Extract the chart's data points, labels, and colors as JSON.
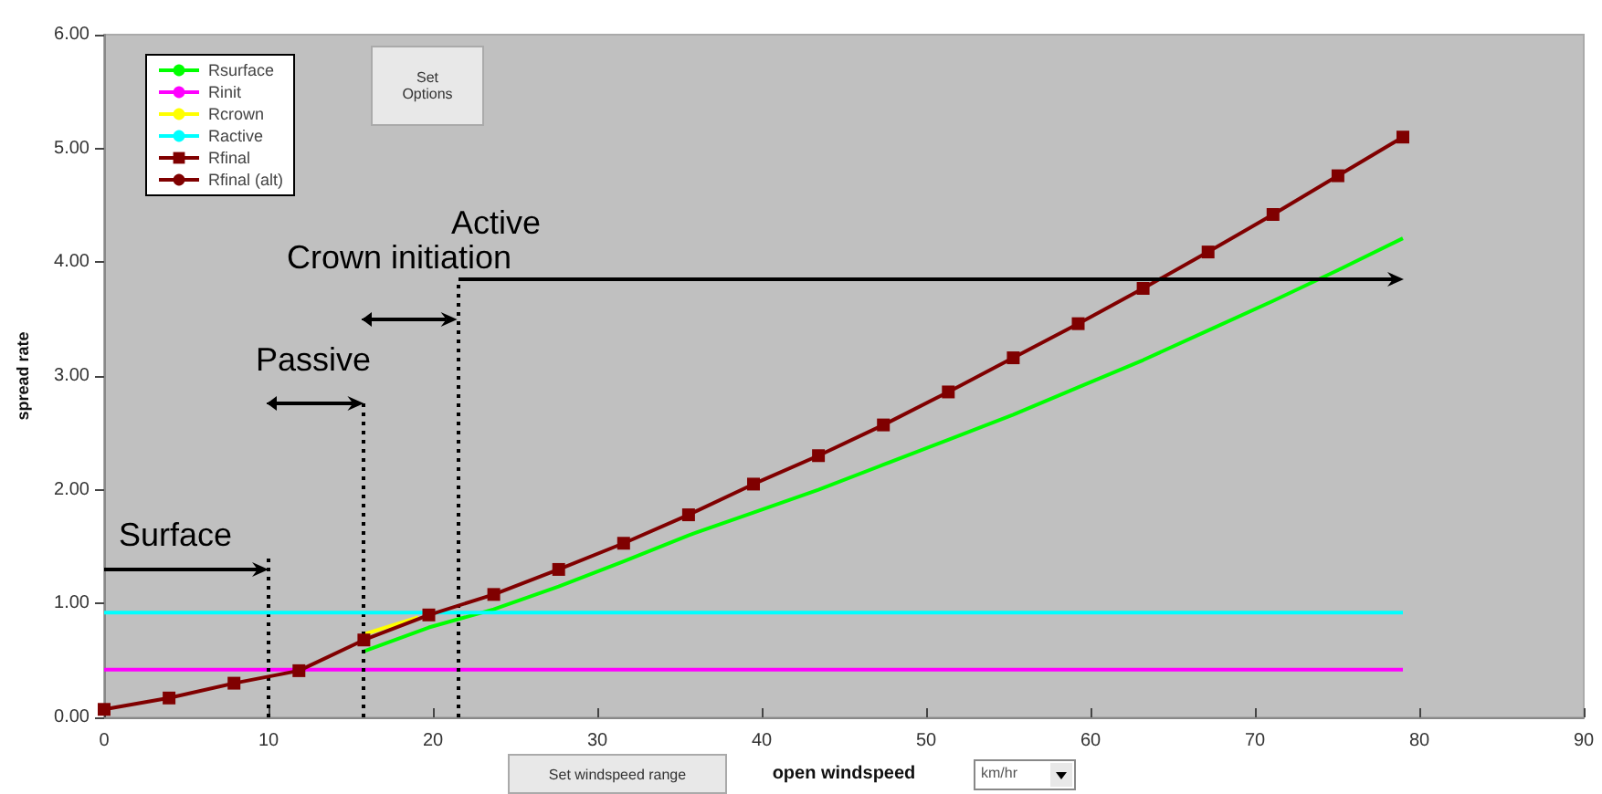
{
  "chart_data": {
    "type": "line",
    "xlabel": "open windspeed",
    "ylabel": "spread rate",
    "x": [
      0,
      3.95,
      7.9,
      11.85,
      15.8,
      19.75,
      23.7,
      27.65,
      31.6,
      35.55,
      39.5,
      43.45,
      47.4,
      51.35,
      55.3,
      59.25,
      63.2,
      67.15,
      71.1,
      75.05,
      79
    ],
    "series": [
      {
        "name": "Rsurface",
        "color": "#00ff00",
        "marker": "none",
        "values": [
          null,
          null,
          null,
          null,
          0.58,
          0.79,
          0.95,
          1.15,
          1.37,
          1.6,
          1.8,
          2.0,
          2.22,
          2.44,
          2.66,
          2.9,
          3.14,
          3.4,
          3.66,
          3.93,
          4.21
        ]
      },
      {
        "name": "Rinit",
        "color": "#ff00ff",
        "marker": "none",
        "x": [
          0,
          79
        ],
        "values": [
          0.42,
          0.42
        ]
      },
      {
        "name": "Rcrown",
        "color": "#ffff00",
        "marker": "none",
        "x": [
          15.8,
          19.1
        ],
        "values": [
          0.73,
          0.88
        ]
      },
      {
        "name": "Ractive",
        "color": "#00ffff",
        "marker": "none",
        "x": [
          0,
          79
        ],
        "values": [
          0.92,
          0.92
        ]
      },
      {
        "name": "Rfinal",
        "color": "#800000",
        "marker": "square",
        "values": [
          0.07,
          0.17,
          0.3,
          0.41,
          0.68,
          0.9,
          1.08,
          1.3,
          1.53,
          1.78,
          2.05,
          2.3,
          2.57,
          2.86,
          3.16,
          3.46,
          3.77,
          4.09,
          4.42,
          4.76,
          5.1
        ]
      },
      {
        "name": "Rfinal (alt)",
        "color": "#800000",
        "marker": "circle",
        "values": [
          null,
          null,
          null,
          null,
          null,
          null,
          null,
          null,
          null,
          null,
          null,
          null,
          null,
          null,
          null,
          null,
          null,
          null,
          null,
          null,
          null
        ]
      }
    ],
    "xlim": [
      0,
      90
    ],
    "xticks": [
      0,
      10,
      20,
      30,
      40,
      50,
      60,
      70,
      80,
      90
    ],
    "ylim": [
      0,
      6
    ],
    "yticks": [
      {
        "value": 0,
        "label": "0.00"
      },
      {
        "value": 1,
        "label": "1.00"
      },
      {
        "value": 2,
        "label": "2.00"
      },
      {
        "value": 3,
        "label": "3.00"
      },
      {
        "value": 4,
        "label": "4.00"
      },
      {
        "value": 5,
        "label": "5.00"
      },
      {
        "value": 6,
        "label": "6.00"
      }
    ],
    "ref_lines": [
      {
        "axis": "x",
        "value": 10,
        "color": "#000000",
        "line_style": "dotted"
      },
      {
        "axis": "x",
        "value": 15.8,
        "color": "#000000",
        "line_style": "dotted"
      },
      {
        "axis": "x",
        "value": 21.5,
        "color": "#000000",
        "line_style": "dotted"
      }
    ],
    "annotations": [
      "Surface",
      "Passive",
      "Crown initiation",
      "Active",
      "Set Options",
      "Set windspeed range",
      "km/hr"
    ],
    "grid": false,
    "legend": "top left"
  }
}
